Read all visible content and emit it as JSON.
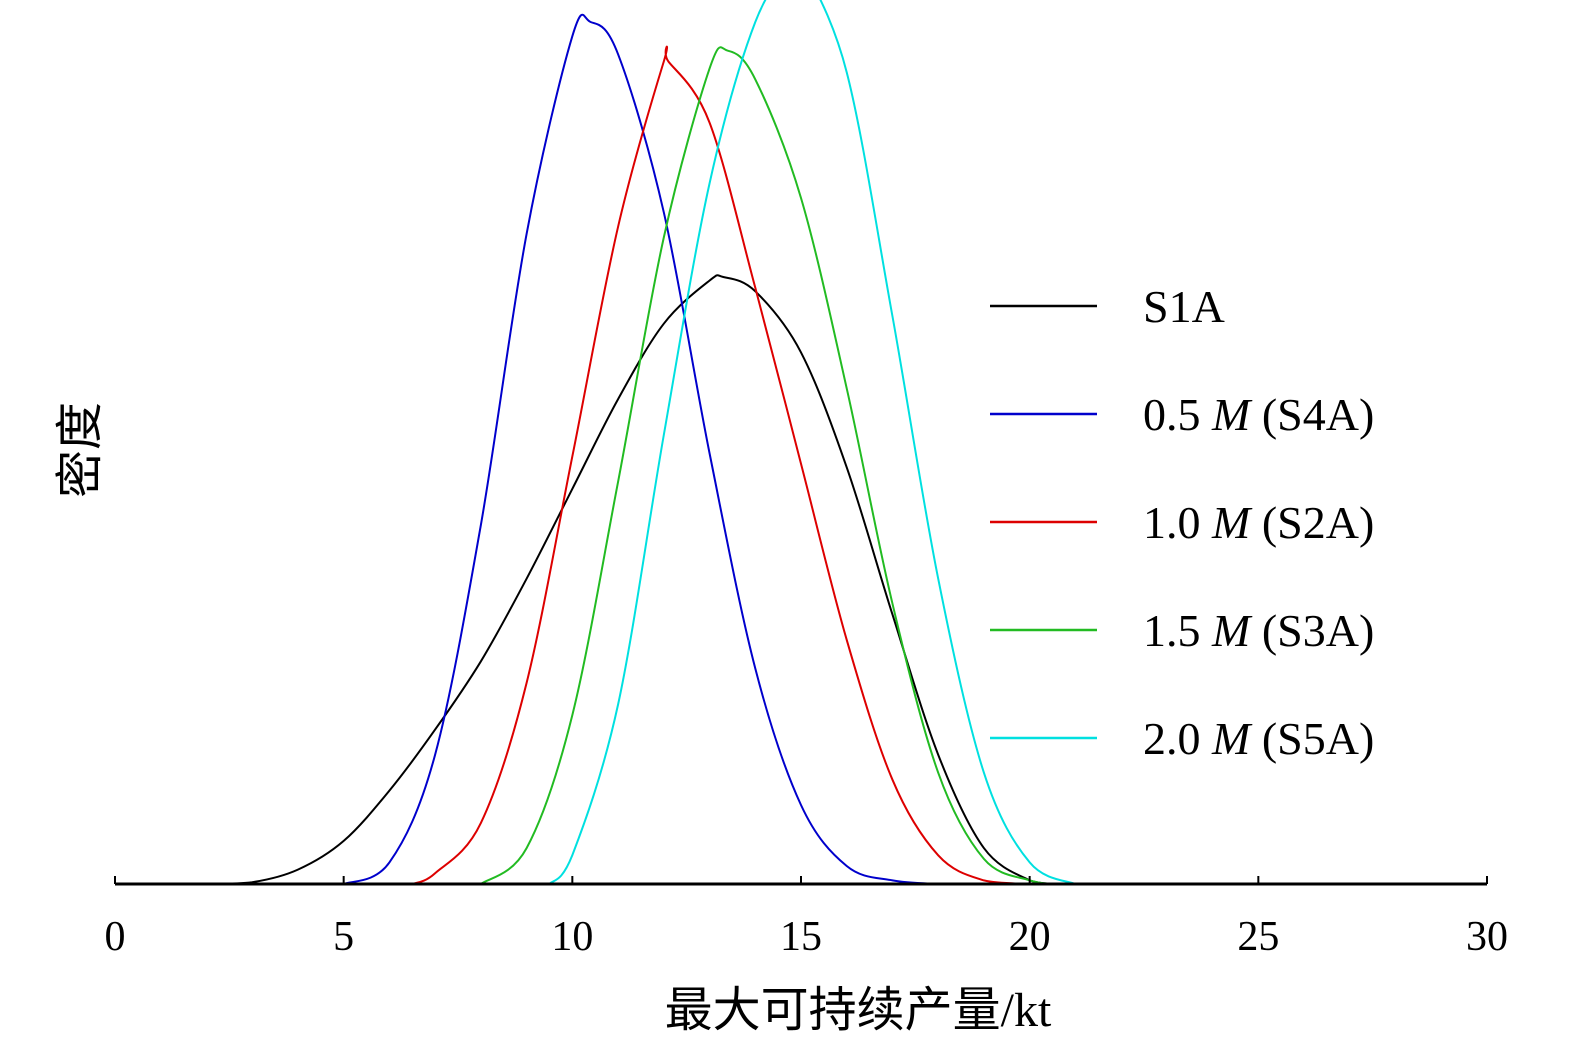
{
  "chart_data": {
    "type": "line",
    "title": "",
    "xlabel": "最大可持续产量/kt",
    "ylabel": "密度",
    "xlim": [
      0,
      30
    ],
    "ylim": [
      0,
      0.245
    ],
    "xticks": [
      "0",
      "5",
      "10",
      "15",
      "20",
      "25",
      "30"
    ],
    "grid": false,
    "legend_position": "right",
    "series": [
      {
        "name": "S1A",
        "legend": {
          "pre": "S1A",
          "em": "",
          "post": ""
        },
        "color": "#000000",
        "x": [
          2,
          3,
          4,
          5,
          6,
          7,
          8,
          9,
          10,
          11,
          12,
          13,
          13.3,
          14,
          15,
          16,
          17,
          18,
          19,
          20,
          20.5
        ],
        "y": [
          0.0,
          0.0005,
          0.004,
          0.012,
          0.026,
          0.043,
          0.062,
          0.085,
          0.11,
          0.135,
          0.156,
          0.168,
          0.169,
          0.165,
          0.148,
          0.116,
          0.075,
          0.036,
          0.01,
          0.001,
          0.0
        ]
      },
      {
        "name": "0.5 M (S4A)",
        "legend": {
          "pre": "0.5 ",
          "em": "M",
          "post": " (S4A)"
        },
        "color": "#0000cc",
        "x": [
          5,
          6,
          7,
          8,
          9,
          10,
          10.4,
          11,
          12,
          13,
          14,
          15,
          16,
          17,
          18
        ],
        "y": [
          0.0,
          0.006,
          0.036,
          0.1,
          0.181,
          0.236,
          0.24,
          0.231,
          0.187,
          0.12,
          0.06,
          0.022,
          0.005,
          0.001,
          0.0
        ]
      },
      {
        "name": "1.0 M (S2A)",
        "legend": {
          "pre": "1.0 ",
          "em": "M",
          "post": " (S2A)"
        },
        "color": "#dd0000",
        "x": [
          6.5,
          7,
          8,
          9,
          10,
          11,
          12,
          12.1,
          13,
          14,
          15,
          16,
          17,
          18,
          19,
          20
        ],
        "y": [
          0.0,
          0.003,
          0.017,
          0.056,
          0.119,
          0.183,
          0.229,
          0.229,
          0.212,
          0.166,
          0.117,
          0.068,
          0.029,
          0.008,
          0.001,
          0.0
        ]
      },
      {
        "name": "1.5 M (S3A)",
        "legend": {
          "pre": "1.5 ",
          "em": "M",
          "post": " (S3A)"
        },
        "color": "#22bb22",
        "x": [
          8,
          9,
          10,
          11,
          12,
          13,
          13.4,
          14,
          15,
          16,
          17,
          18,
          19,
          20,
          20.5
        ],
        "y": [
          0.0,
          0.01,
          0.047,
          0.112,
          0.18,
          0.227,
          0.232,
          0.224,
          0.191,
          0.138,
          0.078,
          0.031,
          0.007,
          0.001,
          0.0
        ]
      },
      {
        "name": "2.0 M (S5A)",
        "legend": {
          "pre": "2.0 ",
          "em": "M",
          "post": " (S5A)"
        },
        "color": "#00e0e0",
        "x": [
          9.5,
          10,
          11,
          12,
          13,
          14,
          14.9,
          15,
          16,
          17,
          18,
          19,
          20,
          21
        ],
        "y": [
          0.0,
          0.008,
          0.05,
          0.125,
          0.195,
          0.24,
          0.258,
          0.257,
          0.226,
          0.158,
          0.085,
          0.031,
          0.006,
          0.0
        ]
      }
    ]
  }
}
